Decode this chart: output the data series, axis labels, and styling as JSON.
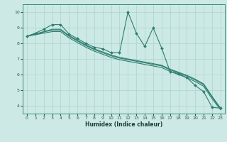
{
  "xlabel": "Humidex (Indice chaleur)",
  "xlim": [
    -0.5,
    23.5
  ],
  "ylim": [
    3.5,
    10.5
  ],
  "x_ticks": [
    0,
    1,
    2,
    3,
    4,
    5,
    6,
    7,
    8,
    9,
    10,
    11,
    12,
    13,
    14,
    15,
    16,
    17,
    18,
    19,
    20,
    21,
    22,
    23
  ],
  "y_ticks": [
    4,
    5,
    6,
    7,
    8,
    9,
    10
  ],
  "background_color": "#cce9e5",
  "grid_color": "#aad4ce",
  "line_color": "#2e7d6e",
  "series": [
    {
      "x": [
        0,
        1,
        2,
        3,
        4,
        5,
        6,
        7,
        8,
        9,
        10,
        11,
        12,
        13,
        14,
        15,
        16,
        17,
        18,
        19,
        20,
        21,
        22,
        23
      ],
      "y": [
        8.45,
        8.65,
        8.9,
        9.2,
        9.2,
        8.6,
        8.3,
        8.0,
        7.75,
        7.65,
        7.4,
        7.4,
        10.0,
        8.65,
        7.8,
        9.0,
        7.7,
        6.2,
        6.05,
        5.8,
        5.3,
        4.9,
        3.9,
        3.85
      ],
      "marker": true
    },
    {
      "x": [
        0,
        1,
        2,
        3,
        4,
        5,
        6,
        7,
        8,
        9,
        10,
        11,
        12,
        13,
        14,
        15,
        16,
        17,
        18,
        19,
        20,
        21,
        22,
        23
      ],
      "y": [
        8.45,
        8.6,
        8.75,
        8.9,
        8.9,
        8.5,
        8.2,
        7.9,
        7.65,
        7.45,
        7.25,
        7.1,
        7.0,
        6.9,
        6.8,
        6.7,
        6.6,
        6.35,
        6.15,
        5.95,
        5.7,
        5.4,
        4.6,
        3.85
      ],
      "marker": false
    },
    {
      "x": [
        0,
        1,
        2,
        3,
        4,
        5,
        6,
        7,
        8,
        9,
        10,
        11,
        12,
        13,
        14,
        15,
        16,
        17,
        18,
        19,
        20,
        21,
        22,
        23
      ],
      "y": [
        8.45,
        8.58,
        8.72,
        8.85,
        8.85,
        8.45,
        8.15,
        7.85,
        7.6,
        7.4,
        7.2,
        7.05,
        6.95,
        6.85,
        6.75,
        6.65,
        6.55,
        6.3,
        6.1,
        5.9,
        5.65,
        5.35,
        4.55,
        3.8
      ],
      "marker": false
    },
    {
      "x": [
        0,
        1,
        2,
        3,
        4,
        5,
        6,
        7,
        8,
        9,
        10,
        11,
        12,
        13,
        14,
        15,
        16,
        17,
        18,
        19,
        20,
        21,
        22,
        23
      ],
      "y": [
        8.45,
        8.55,
        8.65,
        8.75,
        8.75,
        8.35,
        8.05,
        7.75,
        7.5,
        7.3,
        7.1,
        6.95,
        6.85,
        6.75,
        6.65,
        6.55,
        6.45,
        6.2,
        6.0,
        5.8,
        5.55,
        5.25,
        4.45,
        3.75
      ],
      "marker": false
    }
  ]
}
